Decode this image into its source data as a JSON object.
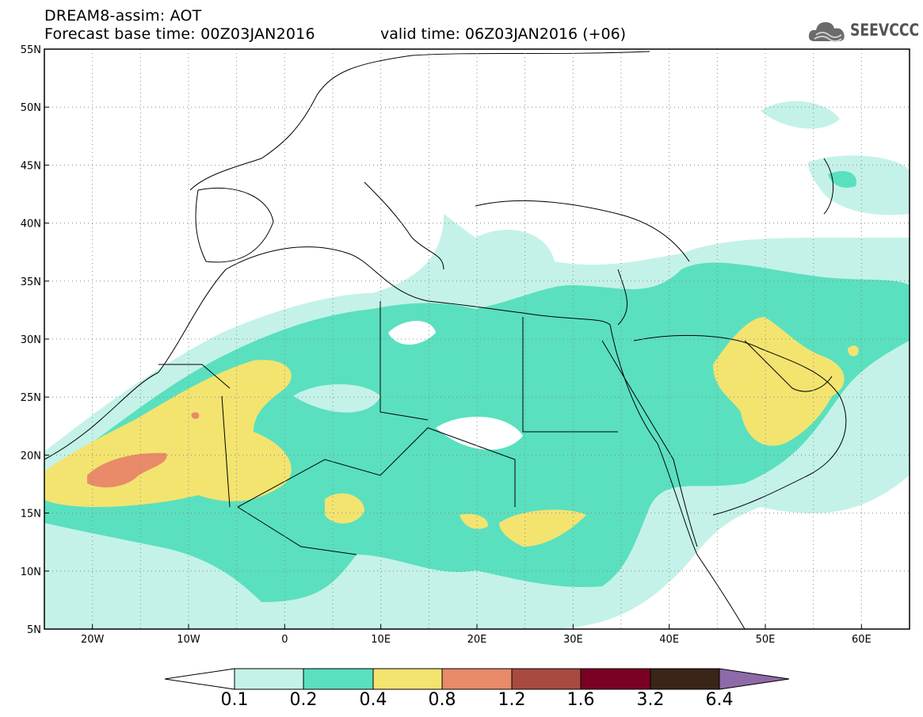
{
  "header": {
    "title": "DREAM8-assim: AOT",
    "forecast_base": "Forecast base time: 00Z03JAN2016",
    "valid_time": "valid time: 06Z03JAN2016 (+06)"
  },
  "logo": {
    "text": "SEEVCCC",
    "icon": "cloud-icon"
  },
  "map": {
    "field": "aerosol optical thickness",
    "lat_range": [
      5,
      55
    ],
    "lon_range": [
      -25,
      65
    ],
    "lat_labels": [
      "55N",
      "50N",
      "45N",
      "40N",
      "35N",
      "30N",
      "25N",
      "20N",
      "15N",
      "10N",
      "5N"
    ],
    "lon_labels": [
      "20W",
      "10W",
      "0",
      "10E",
      "20E",
      "30E",
      "40E",
      "50E",
      "60E"
    ]
  },
  "colorbar": {
    "labels": [
      "0.1",
      "0.2",
      "0.4",
      "0.8",
      "1.2",
      "1.6",
      "3.2",
      "6.4"
    ],
    "colors": [
      "#ffffff",
      "#c4f2e8",
      "#5ae0be",
      "#f3e470",
      "#e98a68",
      "#a94a40",
      "#7a0024",
      "#3b2418",
      "#8e6aa8"
    ]
  }
}
